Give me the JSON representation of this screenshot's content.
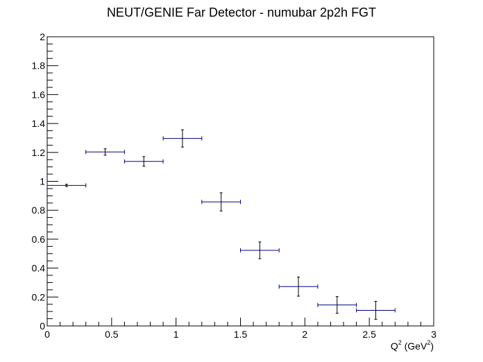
{
  "chart_data": {
    "type": "scatter",
    "title": "NEUT/GENIE Far Detector - numubar 2p2h FGT",
    "xlabel": "Q^2 (GeV^2)",
    "xlabel_parts": {
      "base": "Q",
      "sup1": "2",
      "mid": " (GeV",
      "sup2": "2",
      "end": ")"
    },
    "ylabel": "",
    "xlim": [
      0,
      3
    ],
    "ylim": [
      0,
      2
    ],
    "x_ticks": [
      "0",
      "0.5",
      "1",
      "1.5",
      "2",
      "2.5",
      "3"
    ],
    "y_ticks": [
      "0",
      "0.2",
      "0.4",
      "0.6",
      "0.8",
      "1",
      "1.2",
      "1.4",
      "1.6",
      "1.8",
      "2"
    ],
    "grid": false,
    "series": [
      {
        "color": "#000080",
        "points": [
          {
            "x": 0.15,
            "y": 0.972,
            "xerr": 0.15,
            "yerr": 0.008
          },
          {
            "x": 0.45,
            "y": 1.203,
            "xerr": 0.15,
            "yerr": 0.022
          },
          {
            "x": 0.75,
            "y": 1.138,
            "xerr": 0.15,
            "yerr": 0.033
          },
          {
            "x": 1.05,
            "y": 1.297,
            "xerr": 0.15,
            "yerr": 0.06
          },
          {
            "x": 1.35,
            "y": 0.858,
            "xerr": 0.15,
            "yerr": 0.063
          },
          {
            "x": 1.65,
            "y": 0.523,
            "xerr": 0.15,
            "yerr": 0.058
          },
          {
            "x": 1.95,
            "y": 0.272,
            "xerr": 0.15,
            "yerr": 0.066
          },
          {
            "x": 2.25,
            "y": 0.145,
            "xerr": 0.15,
            "yerr": 0.058
          },
          {
            "x": 2.55,
            "y": 0.108,
            "xerr": 0.15,
            "yerr": 0.062
          }
        ]
      }
    ]
  }
}
